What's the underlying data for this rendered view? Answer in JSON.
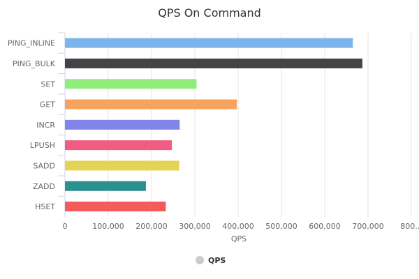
{
  "chart_data": {
    "type": "bar",
    "orientation": "horizontal",
    "title": "QPS On Command",
    "xlabel": "QPS",
    "ylabel": "",
    "categories": [
      "PING_INLINE",
      "PING_BULK",
      "SET",
      "GET",
      "INCR",
      "LPUSH",
      "SADD",
      "ZADD",
      "HSET"
    ],
    "values": [
      665000,
      687000,
      304000,
      397000,
      265000,
      247000,
      264000,
      187000,
      233000
    ],
    "colors": [
      "#7cb5ec",
      "#434348",
      "#90ed7d",
      "#f7a35c",
      "#8085e9",
      "#f15c80",
      "#e4d354",
      "#2b908f",
      "#f45b5b"
    ],
    "xlim": [
      0,
      800000
    ],
    "ticks": [
      "0",
      "100,000",
      "200,000",
      "300,000",
      "400,000",
      "500,000",
      "600,000",
      "700,000",
      "800..."
    ],
    "grid": true,
    "legend": {
      "position": "bottom",
      "label": "QPS",
      "marker_color": "#cccccc"
    }
  }
}
